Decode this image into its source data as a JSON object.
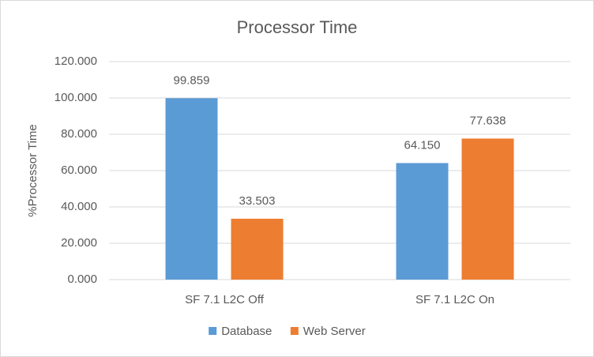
{
  "chart_data": {
    "type": "bar",
    "title": "Processor Time",
    "y_label": "%Processor Time",
    "categories": [
      "SF 7.1 L2C Off",
      "SF 7.1 L2C On"
    ],
    "series": [
      {
        "name": "Database",
        "color": "#5b9bd5",
        "values": [
          99.859,
          64.15
        ],
        "value_labels": [
          "99.859",
          "64.150"
        ]
      },
      {
        "name": "Web Server",
        "color": "#ed7d31",
        "values": [
          33.503,
          77.638
        ],
        "value_labels": [
          "33.503",
          "77.638"
        ]
      }
    ],
    "ylim": [
      0,
      120
    ],
    "yticks": [
      {
        "value": 0,
        "label": "0.000"
      },
      {
        "value": 20,
        "label": "20.000"
      },
      {
        "value": 40,
        "label": "40.000"
      },
      {
        "value": 60,
        "label": "60.000"
      },
      {
        "value": 80,
        "label": "80.000"
      },
      {
        "value": 100,
        "label": "100.000"
      },
      {
        "value": 120,
        "label": "120.000"
      }
    ],
    "grid": true,
    "legend": "bottom"
  }
}
